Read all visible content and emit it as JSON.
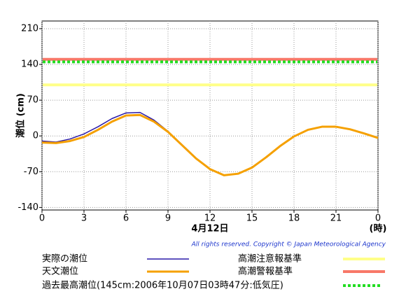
{
  "chart_data": {
    "type": "line",
    "ylabel": "潮位 (cm)",
    "xlabel": "4月12日",
    "xunit": "(時)",
    "copyright": "All rights reserved. Copyright © Japan Meteorological Agency",
    "x": [
      0,
      1,
      2,
      3,
      4,
      5,
      6,
      7,
      8,
      9,
      10,
      11,
      12,
      13,
      14,
      15,
      16,
      17,
      18,
      19,
      20,
      21,
      22,
      23,
      24
    ],
    "series": [
      {
        "name": "実際の潮位",
        "color": "#2a1aa8",
        "width": 1.5,
        "values": [
          -10,
          -12,
          -6,
          4,
          18,
          34,
          45,
          46,
          31,
          9,
          -17,
          -43,
          null,
          null,
          null,
          null,
          null,
          null,
          null,
          null,
          null,
          null,
          null,
          null,
          null
        ]
      },
      {
        "name": "天文潮位",
        "color": "#f5a000",
        "width": 3,
        "values": [
          -13,
          -14,
          -10,
          -2,
          12,
          28,
          40,
          41,
          28,
          8,
          -18,
          -44,
          -65,
          -77,
          -74,
          -62,
          -42,
          -20,
          -1,
          12,
          18,
          18,
          13,
          5,
          -4
        ]
      }
    ],
    "thresholds": [
      {
        "name": "高潮注意報基準",
        "value": 100,
        "color": "#ffff88",
        "dashed": false
      },
      {
        "name": "高潮警報基準",
        "value": 150,
        "color": "#f87868",
        "dashed": false
      },
      {
        "name": "過去最高潮位(145cm:2006年10月07日03時47分:低気圧)",
        "value": 145,
        "color": "#22dd22",
        "dashed": true
      }
    ],
    "xlim": [
      0,
      24
    ],
    "xticks": [
      0,
      3,
      6,
      9,
      12,
      15,
      18,
      21,
      {
        "value": 24,
        "label": "0"
      }
    ],
    "ylim": [
      -145,
      225
    ],
    "yticks": [
      210,
      140,
      70,
      0,
      -70,
      -140
    ],
    "grid": true
  }
}
